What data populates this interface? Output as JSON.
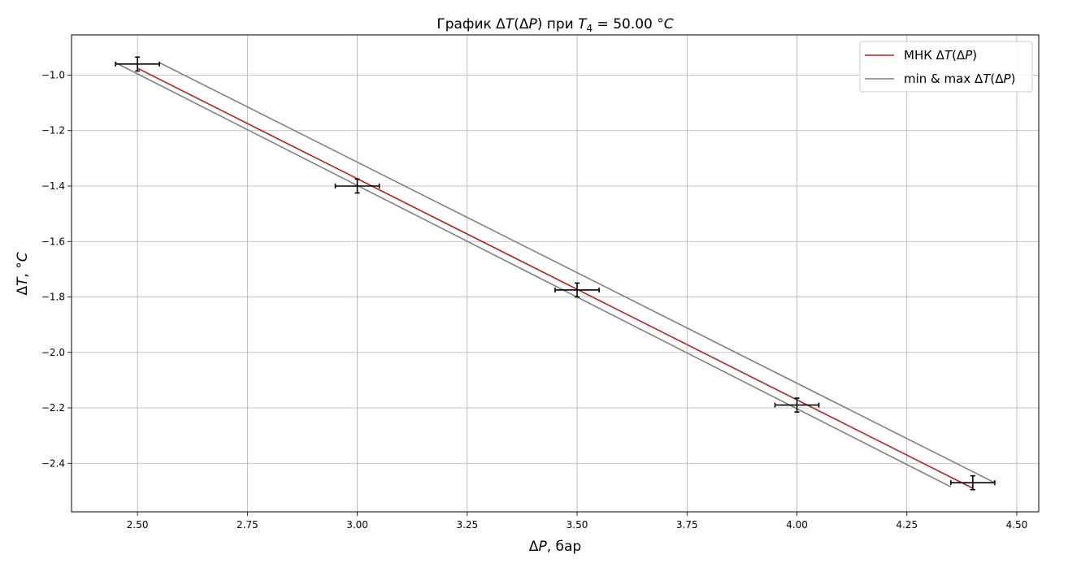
{
  "chart_data": {
    "type": "scatter",
    "title": {
      "pre": "График Δ",
      "var1": "T",
      "mid1": "(Δ",
      "var2": "P",
      "mid2": ") при ",
      "var3": "T",
      "sub": "4",
      "post": " = 50.00 °",
      "unit": "C"
    },
    "xlabel": {
      "pre": "Δ",
      "var": "P",
      "post": ", бар"
    },
    "ylabel": {
      "pre": "Δ",
      "var": "T",
      "post": ", °",
      "unit": "C"
    },
    "xlim": [
      2.35,
      4.55
    ],
    "ylim": [
      -2.575,
      -0.855
    ],
    "xticks": [
      2.5,
      2.75,
      3.0,
      3.25,
      3.5,
      3.75,
      4.0,
      4.25,
      4.5
    ],
    "xtick_labels": [
      "2.50",
      "2.75",
      "3.00",
      "3.25",
      "3.50",
      "3.75",
      "4.00",
      "4.25",
      "4.50"
    ],
    "yticks": [
      -1.0,
      -1.2,
      -1.4,
      -1.6,
      -1.8,
      -2.0,
      -2.2,
      -2.4
    ],
    "ytick_labels": [
      "−1.0",
      "−1.2",
      "−1.4",
      "−1.6",
      "−1.8",
      "−2.0",
      "−2.2",
      "−2.4"
    ],
    "grid": true,
    "legend_position": "top-right",
    "points": {
      "x": [
        2.5,
        3.0,
        3.5,
        4.0,
        4.4
      ],
      "y": [
        -0.96,
        -1.4,
        -1.775,
        -2.19,
        -2.47
      ],
      "xerr": 0.05,
      "yerr": 0.025,
      "color": "#000000"
    },
    "series": [
      {
        "name": {
          "pre": "МНК Δ",
          "var1": "T",
          "mid": "(Δ",
          "var2": "P",
          "post": ")"
        },
        "color": "#b22222",
        "x": [
          2.5,
          4.4
        ],
        "y": [
          -0.975,
          -2.49
        ]
      },
      {
        "name": {
          "pre": "min & max Δ",
          "var1": "T",
          "mid": "(Δ",
          "var2": "P",
          "post": ")"
        },
        "color": "#808080",
        "lines": [
          {
            "x": [
              2.45,
              4.35
            ],
            "y": [
              -0.955,
              -2.485
            ]
          },
          {
            "x": [
              2.55,
              4.45
            ],
            "y": [
              -0.955,
              -2.47
            ]
          }
        ]
      }
    ]
  }
}
